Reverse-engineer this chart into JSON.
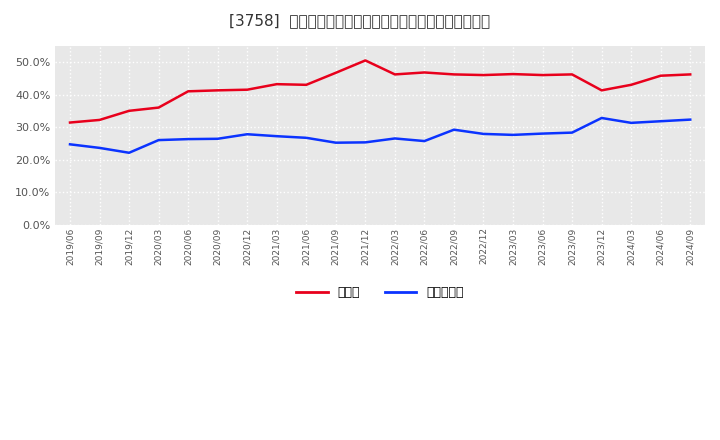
{
  "title": "[3758]  現預金、有利子負債の総資産に対する比率の推移",
  "x_labels": [
    "2019/06",
    "2019/09",
    "2019/12",
    "2020/03",
    "2020/06",
    "2020/09",
    "2020/12",
    "2021/03",
    "2021/06",
    "2021/09",
    "2021/12",
    "2022/03",
    "2022/06",
    "2022/09",
    "2022/12",
    "2023/03",
    "2023/06",
    "2023/09",
    "2023/12",
    "2024/03",
    "2024/06",
    "2024/09"
  ],
  "cash": [
    0.314,
    0.322,
    0.35,
    0.36,
    0.41,
    0.413,
    0.415,
    0.432,
    0.43,
    0.467,
    0.505,
    0.462,
    0.468,
    0.462,
    0.46,
    0.463,
    0.46,
    0.462,
    0.413,
    0.43,
    0.458,
    0.462
  ],
  "debt": [
    0.247,
    0.236,
    0.221,
    0.26,
    0.263,
    0.264,
    0.278,
    0.272,
    0.267,
    0.252,
    0.253,
    0.265,
    0.257,
    0.292,
    0.279,
    0.276,
    0.28,
    0.283,
    0.328,
    0.313,
    0.318,
    0.323
  ],
  "cash_color": "#e8001c",
  "debt_color": "#0b33ff",
  "bg_color": "#ffffff",
  "plot_bg_color": "#e8e8e8",
  "grid_color": "#ffffff",
  "legend_label_cash": "現預金",
  "legend_label_debt": "有利子負債",
  "ylim": [
    0.0,
    0.55
  ],
  "yticks": [
    0.0,
    0.1,
    0.2,
    0.3,
    0.4,
    0.5
  ],
  "line_width": 1.8
}
